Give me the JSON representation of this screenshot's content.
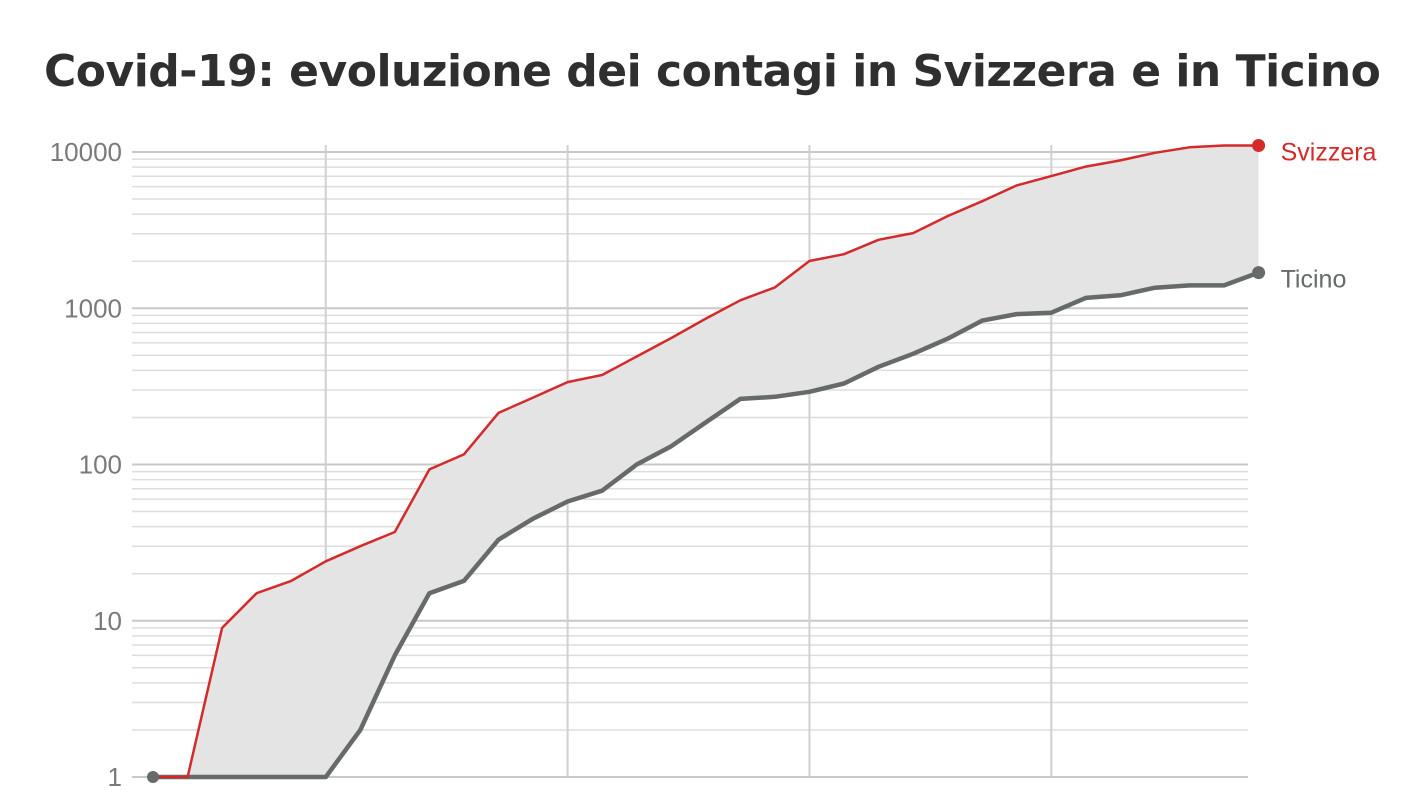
{
  "chart_data": {
    "type": "line",
    "title": "Covid-19: evoluzione dei contagi in Svizzera e in Ticino",
    "xlabel": "",
    "ylabel": "",
    "y_scale": "log",
    "ylim": [
      1,
      10000
    ],
    "y_ticks": [
      1,
      10,
      100,
      1000,
      10000
    ],
    "y_tick_labels": [
      "1",
      "10",
      "100",
      "1000",
      "10000"
    ],
    "x": [
      0,
      1,
      2,
      3,
      4,
      5,
      6,
      7,
      8,
      9,
      10,
      11,
      12,
      13,
      14,
      15,
      16,
      17,
      18,
      19,
      20,
      21,
      22,
      23,
      24,
      25,
      26,
      27,
      28,
      29,
      30,
      31,
      32
    ],
    "xlim": [
      0,
      32.6
    ],
    "x_gridlines": [
      5,
      12,
      19,
      26
    ],
    "grid": true,
    "fill_between_series": true,
    "series": [
      {
        "name": "Svizzera",
        "color": "#d42a2a",
        "values": [
          1,
          1,
          9,
          15,
          18,
          24,
          30,
          37,
          93,
          116,
          214,
          268,
          337,
          374,
          491,
          645,
          858,
          1125,
          1359,
          2005,
          2217,
          2742,
          3028,
          3888,
          4840,
          6113,
          7014,
          8060,
          8836,
          9877,
          10714,
          11000,
          11000
        ]
      },
      {
        "name": "Ticino",
        "color": "#666a6a",
        "values": [
          1,
          1,
          1,
          1,
          1,
          1,
          2,
          6,
          15,
          18,
          33,
          45,
          58,
          68,
          100,
          131,
          186,
          263,
          271,
          292,
          330,
          422,
          511,
          638,
          834,
          918,
          936,
          1165,
          1211,
          1354,
          1401,
          1401,
          1691
        ]
      }
    ]
  }
}
